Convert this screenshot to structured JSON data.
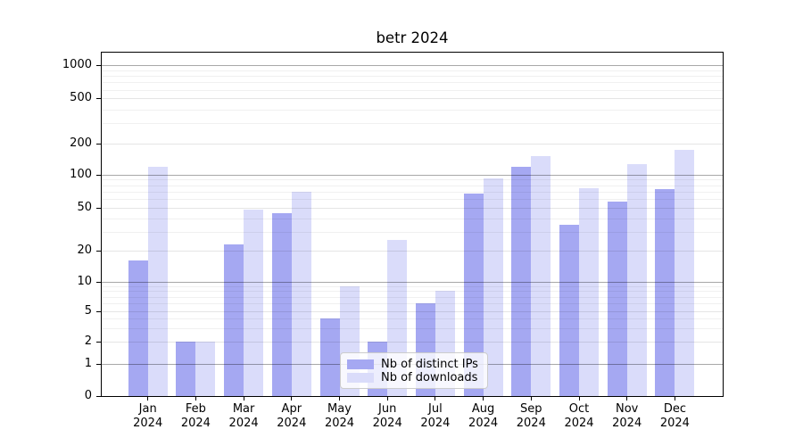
{
  "chart_data": {
    "type": "bar",
    "title": "betr 2024",
    "yscale": "log",
    "ylim": [
      0,
      1000
    ],
    "grid": true,
    "legend_position": "lower-center",
    "y_ticks": [
      0,
      1,
      2,
      5,
      10,
      20,
      50,
      100,
      200,
      500,
      1000
    ],
    "categories": [
      {
        "month": "Jan",
        "year": "2024"
      },
      {
        "month": "Feb",
        "year": "2024"
      },
      {
        "month": "Mar",
        "year": "2024"
      },
      {
        "month": "Apr",
        "year": "2024"
      },
      {
        "month": "May",
        "year": "2024"
      },
      {
        "month": "Jun",
        "year": "2024"
      },
      {
        "month": "Jul",
        "year": "2024"
      },
      {
        "month": "Aug",
        "year": "2024"
      },
      {
        "month": "Sep",
        "year": "2024"
      },
      {
        "month": "Oct",
        "year": "2024"
      },
      {
        "month": "Nov",
        "year": "2024"
      },
      {
        "month": "Dec",
        "year": "2024"
      }
    ],
    "series": [
      {
        "name": "Nb of distinct IPs",
        "color": "#a5a8f2",
        "values": [
          16,
          2,
          23,
          45,
          4,
          2,
          6,
          67,
          118,
          35,
          57,
          74
        ]
      },
      {
        "name": "Nb of downloads",
        "color": "#dadcfa",
        "values": [
          119,
          2,
          48,
          70,
          9,
          25,
          8,
          93,
          150,
          76,
          126,
          172
        ]
      }
    ]
  }
}
